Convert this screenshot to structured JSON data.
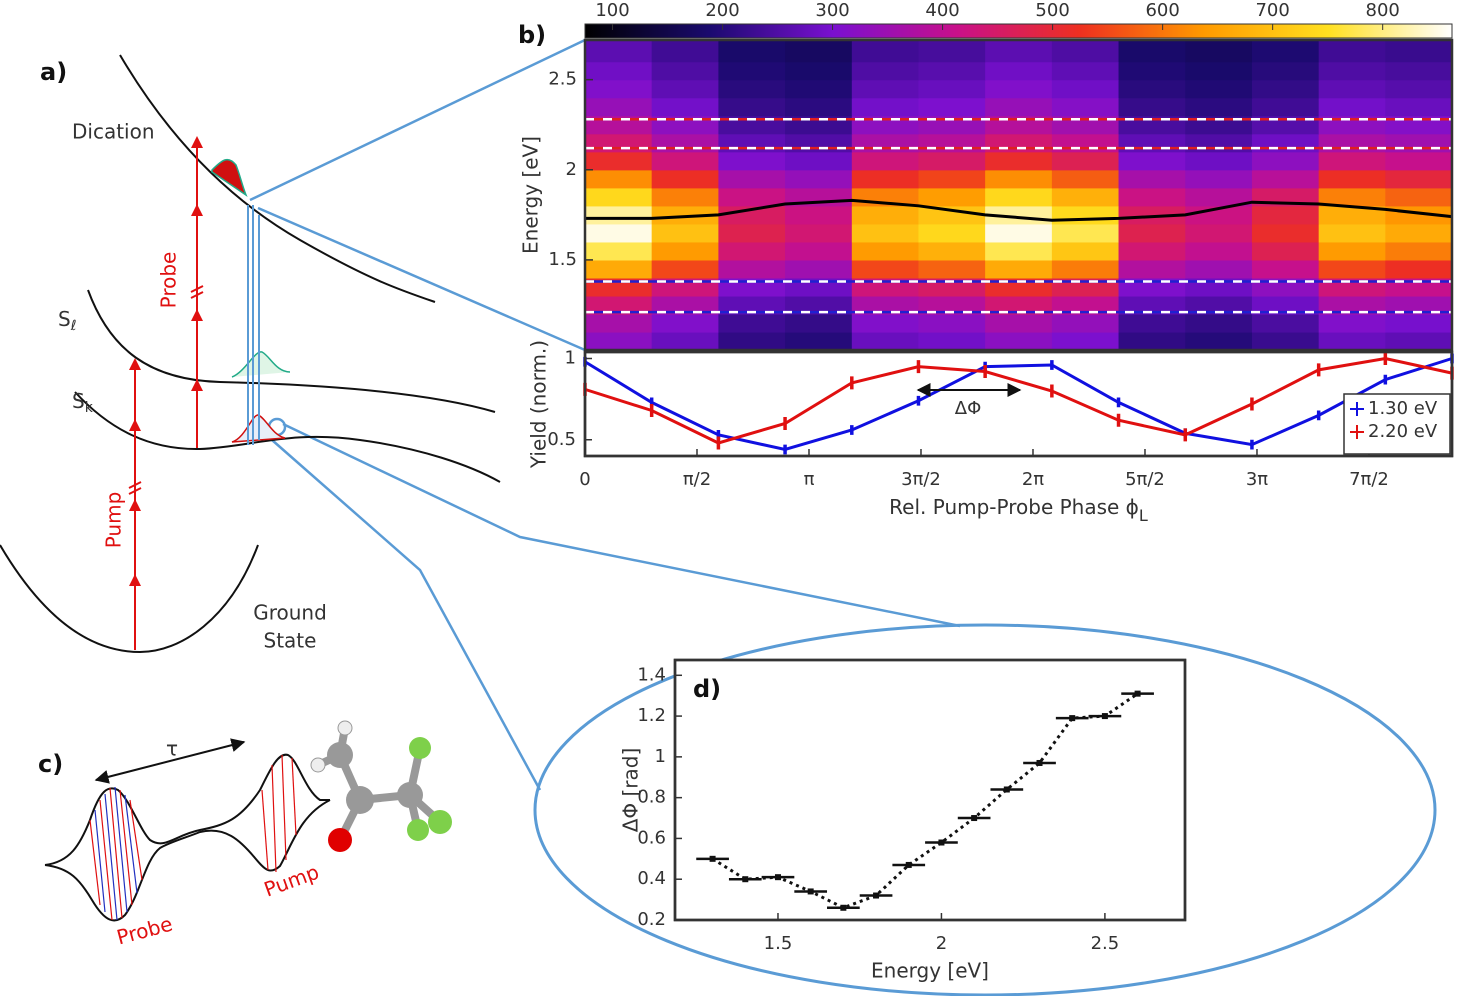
{
  "chart_data": [
    {
      "type": "heatmap",
      "label": "b)",
      "ylabel": "Energy [eV]",
      "x_edges": [
        0,
        0.935,
        1.871,
        2.806,
        3.742,
        4.677,
        5.612,
        6.548,
        7.483,
        8.419,
        9.354,
        10.29,
        11.225,
        12.16
      ],
      "energies": [
        1.05,
        1.15,
        1.25,
        1.35,
        1.45,
        1.55,
        1.65,
        1.75,
        1.85,
        1.95,
        2.05,
        2.15,
        2.25,
        2.35,
        2.45,
        2.55,
        2.65
      ],
      "values": [
        [
          325,
          280,
          213,
          201,
          280,
          291,
          325,
          303,
          213,
          201,
          224,
          280,
          269
        ],
        [
          363,
          310,
          231,
          218,
          310,
          323,
          363,
          336,
          231,
          218,
          245,
          310,
          297
        ],
        [
          438,
          370,
          269,
          252,
          370,
          387,
          438,
          404,
          269,
          252,
          286,
          370,
          353
        ],
        [
          513,
          430,
          306,
          286,
          430,
          451,
          513,
          471,
          306,
          286,
          327,
          430,
          410
        ],
        [
          663,
          550,
          381,
          354,
          550,
          579,
          663,
          606,
          381,
          354,
          410,
          550,
          522
        ],
        [
          775,
          640,
          438,
          404,
          640,
          674,
          775,
          708,
          438,
          404,
          472,
          640,
          607
        ],
        [
          850,
          700,
          475,
          438,
          700,
          738,
          850,
          775,
          475,
          438,
          513,
          700,
          663
        ],
        [
          813,
          670,
          456,
          421,
          670,
          706,
          813,
          741,
          456,
          421,
          492,
          670,
          635
        ],
        [
          738,
          610,
          419,
          387,
          610,
          642,
          738,
          674,
          419,
          387,
          451,
          610,
          579
        ],
        [
          625,
          520,
          363,
          337,
          520,
          547,
          625,
          573,
          363,
          337,
          389,
          520,
          494
        ],
        [
          513,
          430,
          306,
          286,
          430,
          451,
          513,
          471,
          306,
          286,
          327,
          430,
          410
        ],
        [
          438,
          370,
          269,
          252,
          370,
          387,
          438,
          404,
          269,
          252,
          286,
          370,
          353
        ],
        [
          385,
          328,
          243,
          228,
          328,
          342,
          385,
          357,
          243,
          228,
          257,
          328,
          314
        ],
        [
          340,
          292,
          220,
          208,
          292,
          304,
          340,
          316,
          220,
          208,
          232,
          292,
          280
        ],
        [
          310,
          268,
          205,
          195,
          268,
          279,
          310,
          289,
          205,
          195,
          216,
          268,
          258
        ],
        [
          288,
          250,
          194,
          185,
          250,
          260,
          288,
          269,
          194,
          185,
          203,
          250,
          241
        ],
        [
          265,
          232,
          183,
          174,
          232,
          240,
          265,
          249,
          183,
          174,
          191,
          232,
          224
        ]
      ],
      "xlim": [
        0,
        12.16
      ],
      "ylim": [
        1.0,
        2.72
      ],
      "yticks": [
        1.5,
        2,
        2.5
      ],
      "clim": [
        75,
        863
      ],
      "cticks": [
        100,
        200,
        300,
        400,
        500,
        600,
        700,
        800
      ],
      "colormap": [
        "#000000",
        "#1a0a6e",
        "#7a10d0",
        "#c8108a",
        "#ee3020",
        "#ff9a00",
        "#ffe020",
        "#ffffff"
      ],
      "peak_line": {
        "color": "#000000",
        "values": [
          1.73,
          1.73,
          1.75,
          1.81,
          1.83,
          1.8,
          1.75,
          1.72,
          1.73,
          1.75,
          1.82,
          1.81,
          1.78,
          1.74
        ]
      },
      "bands": [
        {
          "color": "#e02020",
          "values": [
            2.12,
            2.28
          ]
        },
        {
          "color": "#2020d0",
          "values": [
            1.21,
            1.38
          ]
        }
      ]
    },
    {
      "type": "line",
      "xlabel": {
        "text": "Rel. Pump-Probe Phase ϕ",
        "subscript": "L"
      },
      "ylabel": "Yield (norm.)",
      "x": [
        0,
        0.935,
        1.871,
        2.806,
        3.742,
        4.677,
        5.612,
        6.548,
        7.483,
        8.419,
        9.354,
        10.29,
        11.225,
        12.16
      ],
      "xlim": [
        0,
        12.16
      ],
      "xticks": [
        0,
        {
          "value": 1.5708,
          "label": "π/2"
        },
        {
          "value": 3.1416,
          "label": "π"
        },
        {
          "value": 4.7124,
          "label": "3π/2"
        },
        {
          "value": 6.2832,
          "label": "2π"
        },
        {
          "value": 7.854,
          "label": "5π/2"
        },
        {
          "value": 9.4248,
          "label": "3π"
        },
        {
          "value": 10.9956,
          "label": "7π/2"
        }
      ],
      "ylim": [
        0.4,
        1.04
      ],
      "yticks": [
        0.5,
        1
      ],
      "series": [
        {
          "name": "1.30 eV",
          "color": "#1010e0",
          "values": [
            0.98,
            0.73,
            0.53,
            0.44,
            0.56,
            0.74,
            0.95,
            0.96,
            0.73,
            0.54,
            0.47,
            0.65,
            0.87,
            1.0
          ],
          "errors": [
            0.03,
            0.03,
            0.03,
            0.03,
            0.03,
            0.03,
            0.03,
            0.03,
            0.03,
            0.03,
            0.03,
            0.03,
            0.03,
            0.03
          ]
        },
        {
          "name": "2.20 eV",
          "color": "#e01010",
          "values": [
            0.81,
            0.68,
            0.48,
            0.6,
            0.85,
            0.95,
            0.92,
            0.8,
            0.62,
            0.53,
            0.72,
            0.93,
            1.0,
            0.91
          ],
          "errors": [
            0.04,
            0.04,
            0.04,
            0.04,
            0.04,
            0.04,
            0.04,
            0.04,
            0.04,
            0.04,
            0.04,
            0.04,
            0.04,
            0.04
          ]
        }
      ],
      "legend": "lower right",
      "annotation": "ΔΦ"
    },
    {
      "type": "line",
      "label": "d)",
      "xlabel": "Energy [eV]",
      "ylabel": "ΔΦ [rad]",
      "x": [
        1.3,
        1.4,
        1.5,
        1.6,
        1.7,
        1.8,
        1.9,
        2.0,
        2.1,
        2.2,
        2.3,
        2.4,
        2.5,
        2.6
      ],
      "values": [
        0.5,
        0.4,
        0.41,
        0.34,
        0.26,
        0.32,
        0.47,
        0.58,
        0.7,
        0.84,
        0.97,
        1.19,
        1.2,
        1.31
      ],
      "xerr": [
        0.05,
        0.05,
        0.05,
        0.05,
        0.05,
        0.05,
        0.05,
        0.05,
        0.05,
        0.05,
        0.05,
        0.05,
        0.05,
        0.05
      ],
      "color": "#111111",
      "xlim": [
        1.185,
        2.745
      ],
      "xticks": [
        1.5,
        2,
        2.5
      ],
      "ylim": [
        0.2,
        1.475
      ],
      "yticks": [
        0.2,
        0.4,
        0.6,
        0.8,
        1,
        1.2,
        1.4
      ]
    }
  ],
  "diagram": {
    "a": {
      "label": "a)",
      "dication": "Dication",
      "probe": "Probe",
      "pump": "Pump",
      "s_l": {
        "text": "S",
        "subscript": "ℓ"
      },
      "s_k": {
        "text": "S",
        "subscript": "k"
      },
      "ground_state": [
        "Ground",
        "State"
      ]
    },
    "c": {
      "label": "c)",
      "tau": "τ",
      "probe": "Probe",
      "pump": "Pump"
    }
  }
}
